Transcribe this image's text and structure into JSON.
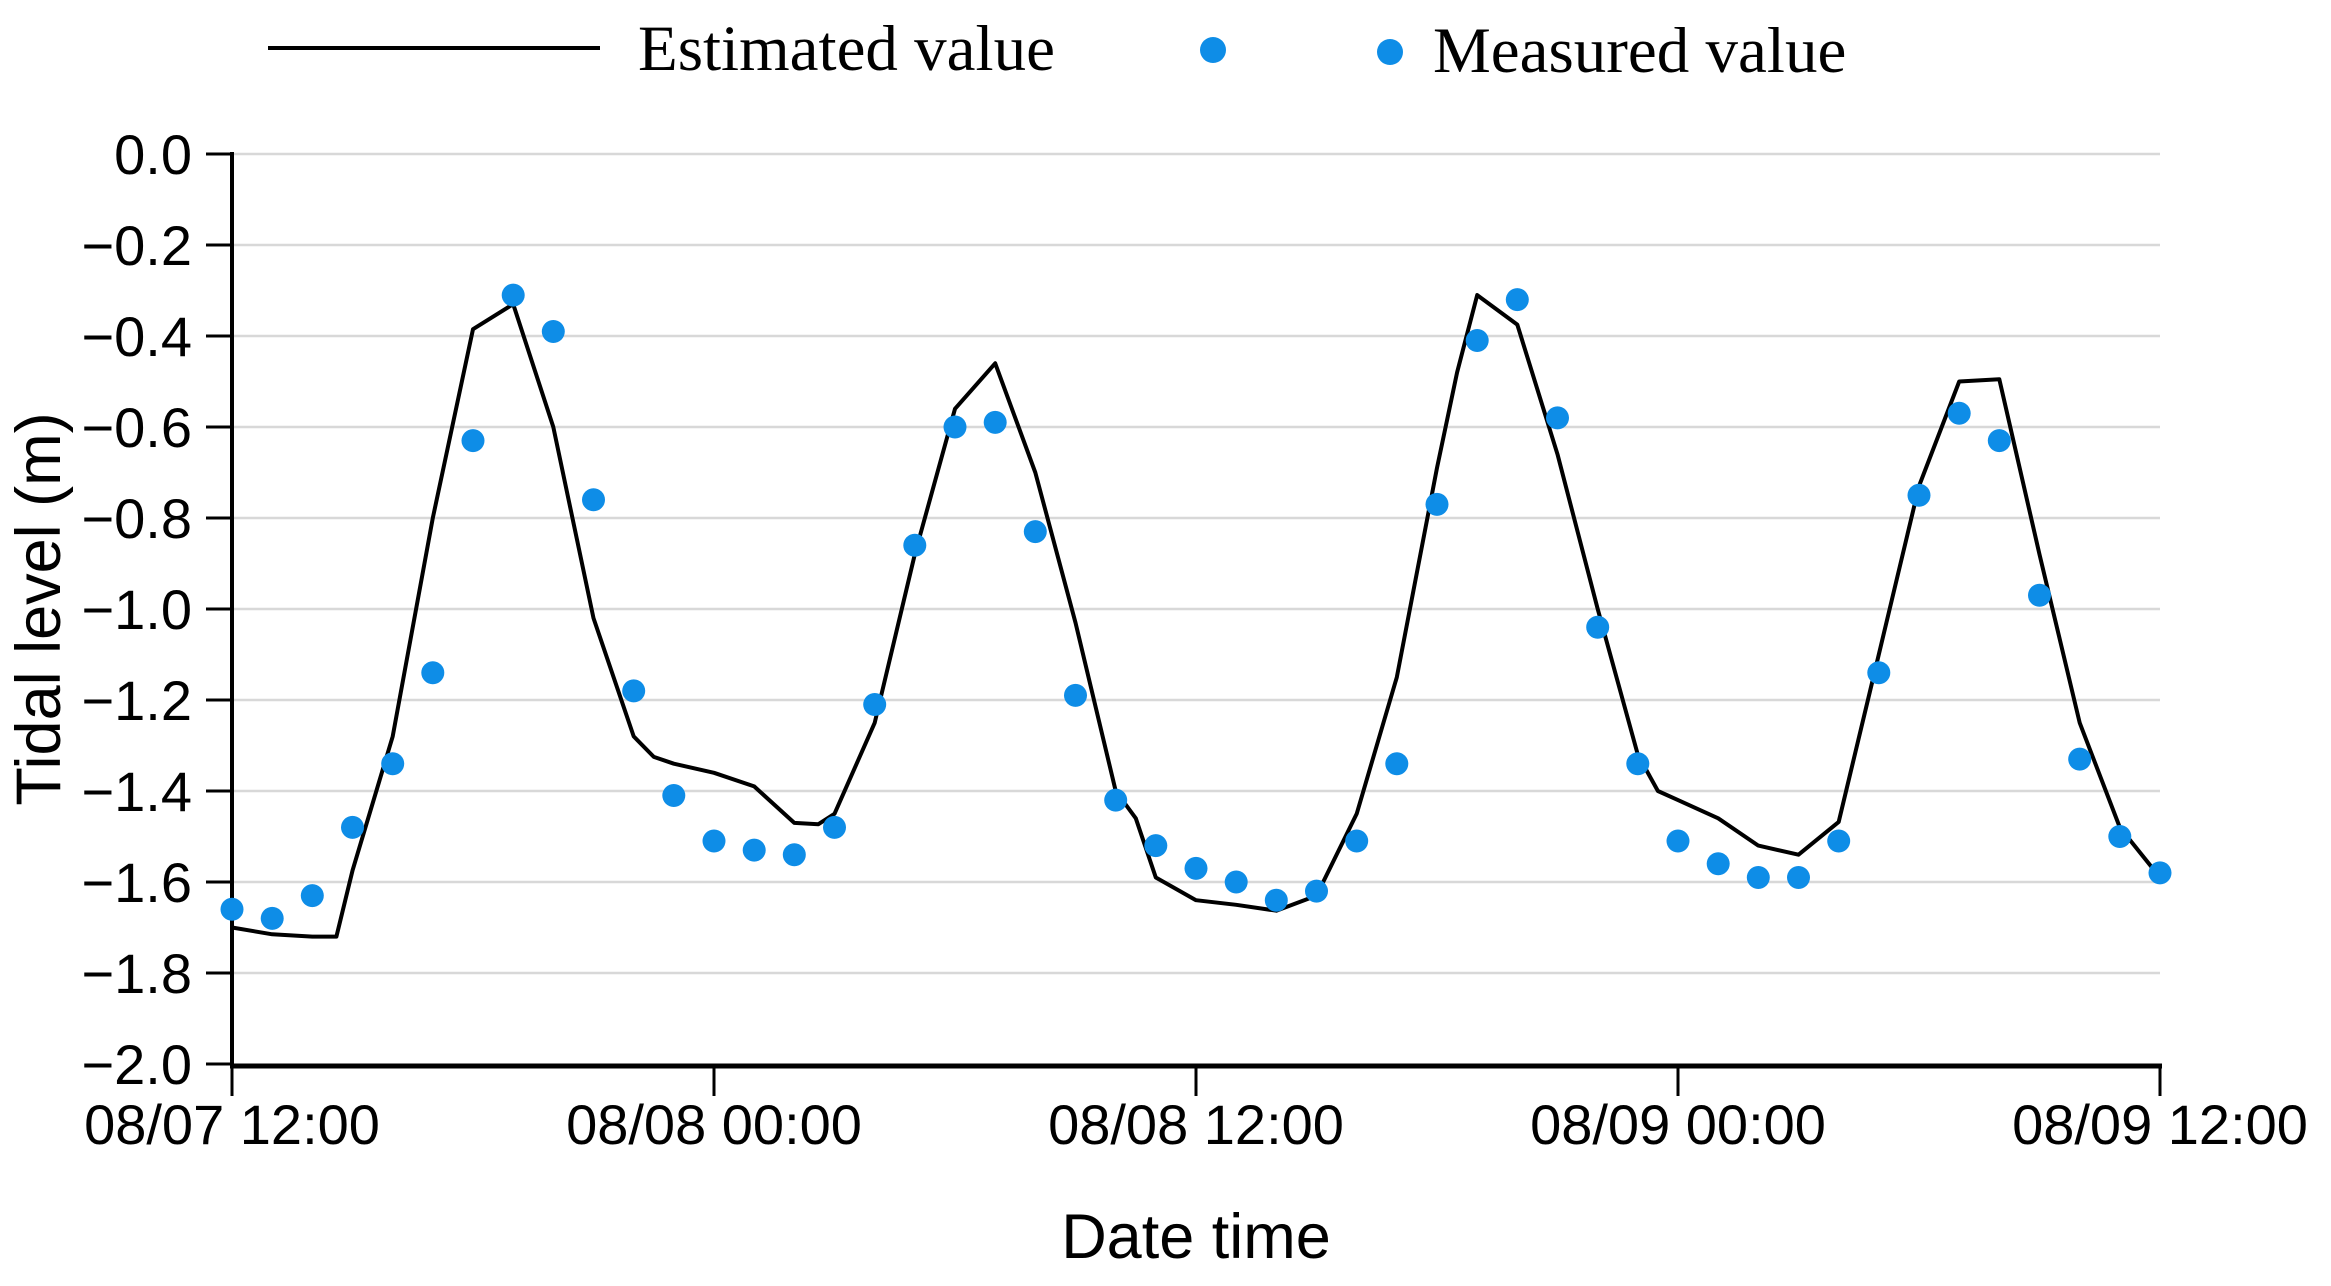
{
  "chart_data": {
    "type": "line+scatter",
    "title": "",
    "xlabel": "Date time",
    "ylabel": "Tidal level (m)",
    "ylim": [
      -2.0,
      0.0
    ],
    "xlim_hours": [
      0,
      48
    ],
    "x_time_origin_label": "08/07 12:00",
    "grid": "horizontal-only",
    "grid_color": "#d8d8d8",
    "xticks": [
      {
        "t": 0,
        "label": "08/07 12:00"
      },
      {
        "t": 12,
        "label": "08/08 00:00"
      },
      {
        "t": 24,
        "label": "08/08 12:00"
      },
      {
        "t": 36,
        "label": "08/09 00:00"
      },
      {
        "t": 48,
        "label": "08/09 12:00"
      }
    ],
    "yticks": [
      {
        "v": 0.0,
        "label": "0.0"
      },
      {
        "v": -0.2,
        "label": "−0.2"
      },
      {
        "v": -0.4,
        "label": "−0.4"
      },
      {
        "v": -0.6,
        "label": "−0.6"
      },
      {
        "v": -0.8,
        "label": "−0.8"
      },
      {
        "v": -1.0,
        "label": "−1.0"
      },
      {
        "v": -1.2,
        "label": "−1.2"
      },
      {
        "v": -1.4,
        "label": "−1.4"
      },
      {
        "v": -1.6,
        "label": "−1.6"
      },
      {
        "v": -1.8,
        "label": "−1.8"
      },
      {
        "v": -2.0,
        "label": "−2.0"
      }
    ],
    "legend": {
      "position": "top",
      "entries": [
        "Estimated value",
        "Measured value"
      ]
    },
    "series": [
      {
        "name": "Estimated value",
        "type": "line",
        "color": "#000000",
        "points_t_hours_vs_m": [
          [
            0,
            -1.7
          ],
          [
            1,
            -1.715
          ],
          [
            2,
            -1.72
          ],
          [
            2.6,
            -1.72
          ],
          [
            3,
            -1.575
          ],
          [
            4,
            -1.28
          ],
          [
            5,
            -0.8
          ],
          [
            6,
            -0.385
          ],
          [
            7,
            -0.33
          ],
          [
            8,
            -0.6
          ],
          [
            9,
            -1.02
          ],
          [
            10,
            -1.28
          ],
          [
            10.5,
            -1.325
          ],
          [
            11,
            -1.34
          ],
          [
            12,
            -1.36
          ],
          [
            13,
            -1.39
          ],
          [
            14,
            -1.47
          ],
          [
            14.6,
            -1.473
          ],
          [
            15,
            -1.45
          ],
          [
            16,
            -1.25
          ],
          [
            17,
            -0.88
          ],
          [
            18,
            -0.56
          ],
          [
            19,
            -0.46
          ],
          [
            20,
            -0.7
          ],
          [
            21,
            -1.03
          ],
          [
            22,
            -1.4
          ],
          [
            22.5,
            -1.46
          ],
          [
            23,
            -1.59
          ],
          [
            24,
            -1.64
          ],
          [
            25,
            -1.65
          ],
          [
            26,
            -1.663
          ],
          [
            27,
            -1.63
          ],
          [
            28,
            -1.45
          ],
          [
            29,
            -1.15
          ],
          [
            30,
            -0.69
          ],
          [
            30.5,
            -0.48
          ],
          [
            31,
            -0.31
          ],
          [
            32,
            -0.375
          ],
          [
            33,
            -0.66
          ],
          [
            34,
            -1.0
          ],
          [
            35,
            -1.32
          ],
          [
            35.5,
            -1.4
          ],
          [
            36,
            -1.42
          ],
          [
            37,
            -1.46
          ],
          [
            38,
            -1.52
          ],
          [
            39,
            -1.54
          ],
          [
            40,
            -1.468
          ],
          [
            41,
            -1.1
          ],
          [
            42,
            -0.73
          ],
          [
            43,
            -0.5
          ],
          [
            44,
            -0.495
          ],
          [
            45,
            -0.88
          ],
          [
            46,
            -1.25
          ],
          [
            47,
            -1.48
          ],
          [
            48,
            -1.59
          ]
        ]
      },
      {
        "name": "Measured value",
        "type": "scatter",
        "color": "#0E8DE7",
        "marker_radius_px": 11.5,
        "points_t_hours_vs_m": [
          [
            0,
            -1.66
          ],
          [
            1,
            -1.68
          ],
          [
            2,
            -1.63
          ],
          [
            3,
            -1.48
          ],
          [
            4,
            -1.34
          ],
          [
            5,
            -1.14
          ],
          [
            6,
            -0.63
          ],
          [
            7,
            -0.31
          ],
          [
            8,
            -0.39
          ],
          [
            9,
            -0.76
          ],
          [
            10,
            -1.18
          ],
          [
            11,
            -1.41
          ],
          [
            12,
            -1.51
          ],
          [
            13,
            -1.53
          ],
          [
            14,
            -1.54
          ],
          [
            15,
            -1.48
          ],
          [
            16,
            -1.21
          ],
          [
            17,
            -0.86
          ],
          [
            18,
            -0.6
          ],
          [
            19,
            -0.59
          ],
          [
            20,
            -0.83
          ],
          [
            21,
            -1.19
          ],
          [
            22,
            -1.42
          ],
          [
            23,
            -1.52
          ],
          [
            24,
            -1.57
          ],
          [
            25,
            -1.6
          ],
          [
            26,
            -1.64
          ],
          [
            27,
            -1.62
          ],
          [
            28,
            -1.51
          ],
          [
            29,
            -1.34
          ],
          [
            30,
            -0.77
          ],
          [
            31,
            -0.41
          ],
          [
            32,
            -0.32
          ],
          [
            33,
            -0.58
          ],
          [
            34,
            -1.04
          ],
          [
            35,
            -1.34
          ],
          [
            36,
            -1.51
          ],
          [
            37,
            -1.56
          ],
          [
            38,
            -1.59
          ],
          [
            39,
            -1.59
          ],
          [
            40,
            -1.51
          ],
          [
            41,
            -1.14
          ],
          [
            42,
            -0.75
          ],
          [
            43,
            -0.57
          ],
          [
            44,
            -0.63
          ],
          [
            45,
            -0.97
          ],
          [
            46,
            -1.33
          ],
          [
            47,
            -1.5
          ],
          [
            48,
            -1.58
          ]
        ]
      }
    ]
  }
}
